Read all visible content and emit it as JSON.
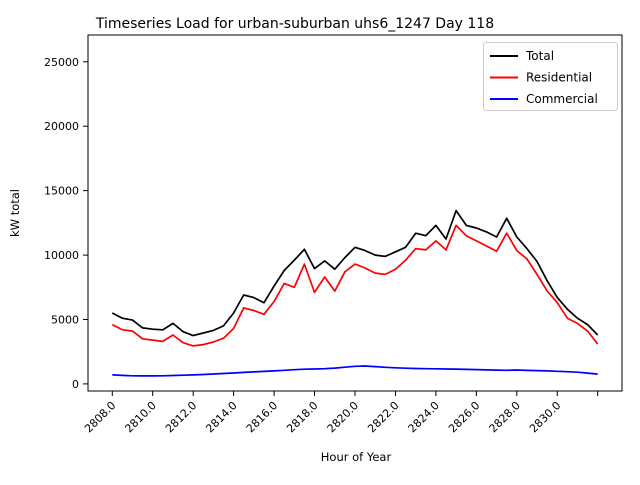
{
  "figure": {
    "title": "Timeseries Load for urban-suburban uhs6_1247  Day 118",
    "xlabel": "Hour of Year",
    "ylabel": "kW total",
    "background": "#ffffff"
  },
  "legend": {
    "items": [
      {
        "label": "Total",
        "color": "#000000"
      },
      {
        "label": "Residential",
        "color": "#ff0000"
      },
      {
        "label": "Commercial",
        "color": "#0000ff"
      }
    ]
  },
  "chart_data": {
    "type": "line",
    "title": "Timeseries Load for urban-suburban uhs6_1247  Day 118",
    "xlabel": "Hour of Year",
    "ylabel": "kW total",
    "grid": false,
    "legend_position": "upper right",
    "xlim": [
      2806.8,
      2833.2
    ],
    "ylim": [
      -550,
      27080
    ],
    "x_ticks": [
      {
        "value": 2808,
        "label": "2808.0"
      },
      {
        "value": 2810,
        "label": "2810.0"
      },
      {
        "value": 2812,
        "label": "2812.0"
      },
      {
        "value": 2814,
        "label": "2814.0"
      },
      {
        "value": 2816,
        "label": "2816.0"
      },
      {
        "value": 2818,
        "label": "2818.0"
      },
      {
        "value": 2820,
        "label": "2820.0"
      },
      {
        "value": 2822,
        "label": "2822.0"
      },
      {
        "value": 2824,
        "label": "2824.0"
      },
      {
        "value": 2826,
        "label": "2826.0"
      },
      {
        "value": 2828,
        "label": "2828.0"
      },
      {
        "value": 2830,
        "label": "2830.0"
      },
      {
        "value": 2832,
        "label": ""
      }
    ],
    "y_ticks": [
      {
        "value": 0,
        "label": "0"
      },
      {
        "value": 5000,
        "label": "5000"
      },
      {
        "value": 10000,
        "label": "10000"
      },
      {
        "value": 15000,
        "label": "15000"
      },
      {
        "value": 20000,
        "label": "20000"
      },
      {
        "value": 25000,
        "label": "25000"
      }
    ],
    "x": [
      2808,
      2808.5,
      2809,
      2809.5,
      2810,
      2810.5,
      2811,
      2811.5,
      2812,
      2812.5,
      2813,
      2813.5,
      2814,
      2814.5,
      2815,
      2815.5,
      2816,
      2816.5,
      2817,
      2817.5,
      2818,
      2818.5,
      2819,
      2819.5,
      2820,
      2820.5,
      2821,
      2821.5,
      2822,
      2822.5,
      2823,
      2823.5,
      2824,
      2824.5,
      2825,
      2825.5,
      2826,
      2826.5,
      2827,
      2827.5,
      2828,
      2828.5,
      2829,
      2829.5,
      2830,
      2830.5,
      2831,
      2831.5,
      2832
    ],
    "series": [
      {
        "name": "Total",
        "color": "#000000",
        "values": [
          5500,
          5100,
          4950,
          4350,
          4250,
          4200,
          4700,
          4050,
          3750,
          3950,
          4150,
          4500,
          5500,
          6900,
          6700,
          6300,
          7600,
          8800,
          9600,
          10450,
          8950,
          9550,
          8900,
          9800,
          10600,
          10350,
          10000,
          9900,
          10250,
          10600,
          11700,
          11500,
          12300,
          11250,
          13450,
          12300,
          12100,
          11800,
          11400,
          12850,
          11400,
          10500,
          9500,
          8000,
          6700,
          5800,
          5100,
          4600,
          3800
        ]
      },
      {
        "name": "Residential",
        "color": "#ff0000",
        "values": [
          4600,
          4200,
          4100,
          3500,
          3400,
          3300,
          3800,
          3200,
          2950,
          3050,
          3250,
          3550,
          4300,
          5900,
          5700,
          5400,
          6400,
          7800,
          7500,
          9300,
          7100,
          8300,
          7200,
          8700,
          9300,
          9000,
          8600,
          8500,
          8900,
          9600,
          10500,
          10400,
          11100,
          10400,
          12300,
          11500,
          11100,
          10700,
          10300,
          11700,
          10350,
          9700,
          8500,
          7200,
          6300,
          5100,
          4700,
          4100,
          3100
        ]
      },
      {
        "name": "Commercial",
        "color": "#0000ff",
        "values": [
          700,
          660,
          630,
          620,
          620,
          630,
          650,
          680,
          700,
          730,
          770,
          810,
          850,
          890,
          930,
          970,
          1010,
          1060,
          1100,
          1140,
          1160,
          1180,
          1230,
          1300,
          1370,
          1390,
          1340,
          1290,
          1250,
          1220,
          1200,
          1180,
          1170,
          1160,
          1150,
          1130,
          1110,
          1090,
          1070,
          1060,
          1080,
          1050,
          1030,
          1010,
          980,
          950,
          910,
          840,
          760
        ]
      }
    ]
  }
}
